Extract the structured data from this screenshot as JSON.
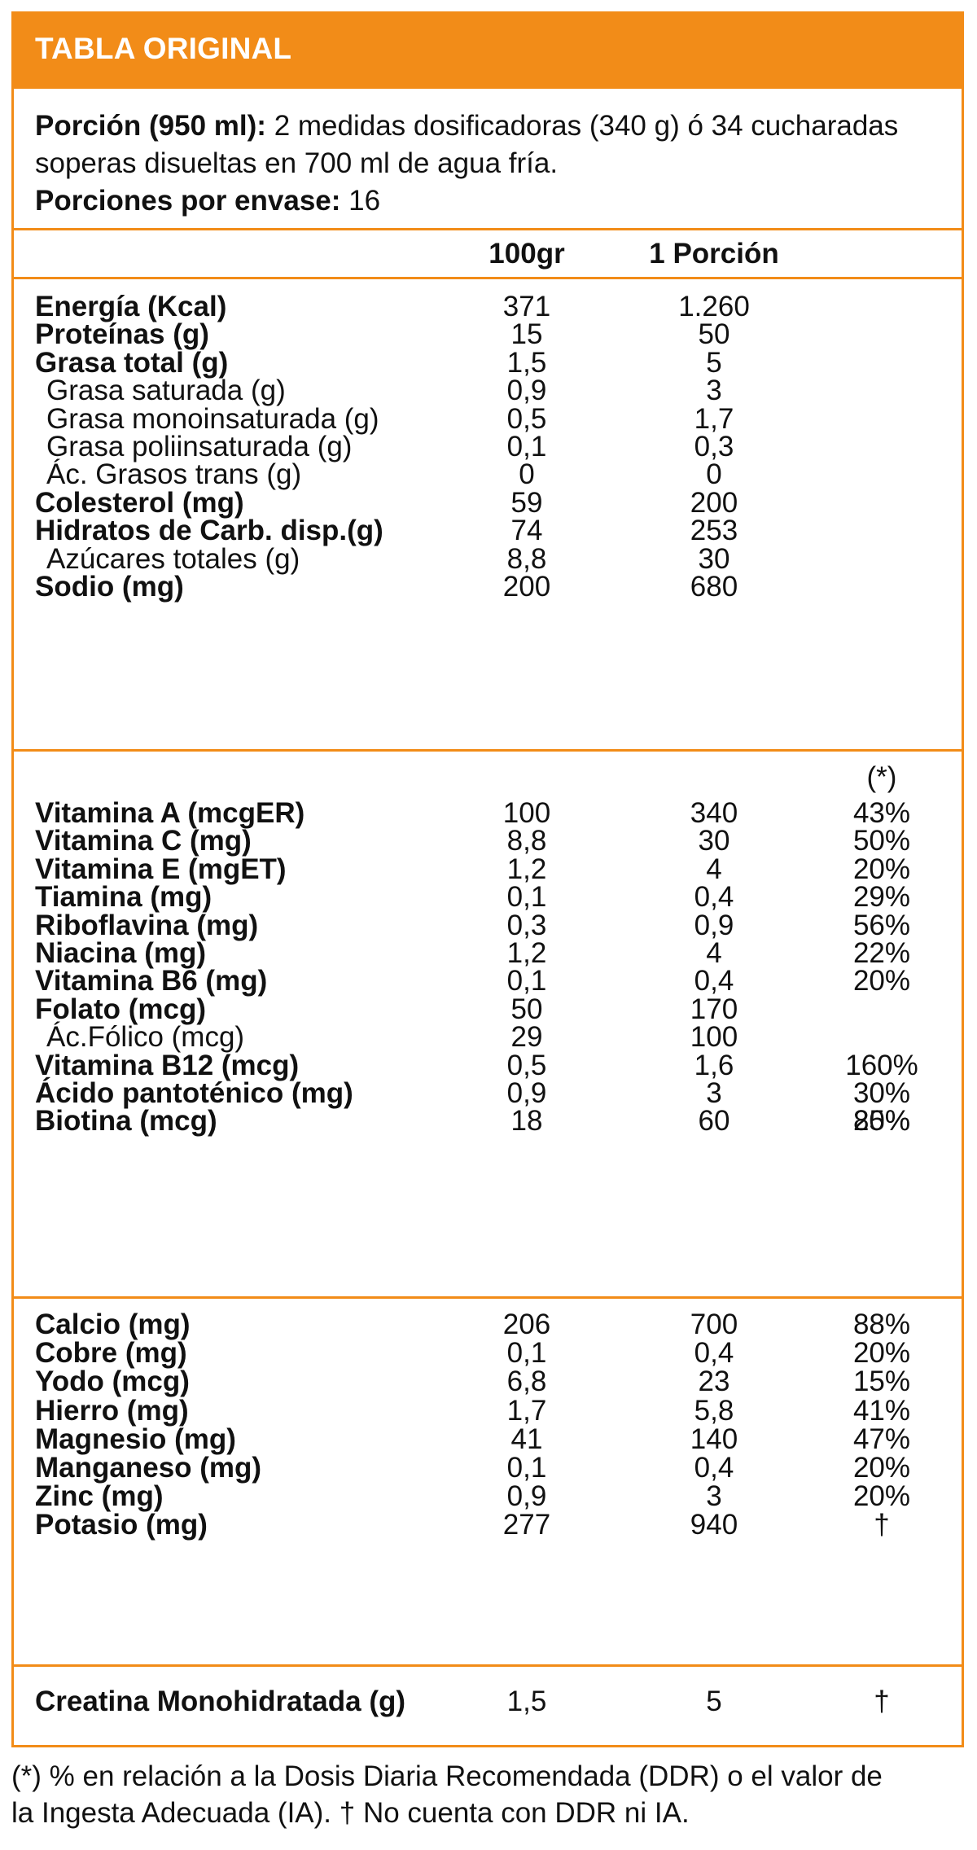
{
  "header": {
    "title": "TABLA ORIGINAL"
  },
  "serving": {
    "label": "Porción (950 ml):",
    "text1": "2 medidas dosificadoras (340 g) ó 34 cucharadas",
    "text2": "soperas disueltas en 700 ml de agua fría.",
    "per_pack_label": "Porciones por envase:",
    "per_pack_value": "16"
  },
  "columns": {
    "per100": "100gr",
    "perServing": "1 Porción",
    "percent_marker": "(*)"
  },
  "sections": [
    [
      {
        "name": "Energía (Kcal)",
        "bold": true,
        "v100": "371",
        "vpor": "1.260",
        "pct": ""
      },
      {
        "name": "Proteínas (g)",
        "bold": true,
        "v100": "15",
        "vpor": "50",
        "pct": ""
      },
      {
        "name": "Grasa total (g)",
        "bold": true,
        "v100": "1,5",
        "vpor": "5",
        "pct": ""
      },
      {
        "name": "Grasa saturada (g)",
        "bold": false,
        "v100": "0,9",
        "vpor": "3",
        "pct": ""
      },
      {
        "name": "Grasa monoinsaturada (g)",
        "bold": false,
        "v100": "0,5",
        "vpor": "1,7",
        "pct": ""
      },
      {
        "name": "Grasa poliinsaturada (g)",
        "bold": false,
        "v100": "0,1",
        "vpor": "0,3",
        "pct": ""
      },
      {
        "name": "Ác. Grasos trans (g)",
        "bold": false,
        "v100": "0",
        "vpor": "0",
        "pct": ""
      },
      {
        "name": "Colesterol (mg)",
        "bold": true,
        "v100": "59",
        "vpor": "200",
        "pct": ""
      },
      {
        "name": "Hidratos de Carb. disp.(g)",
        "bold": true,
        "v100": "74",
        "vpor": "253",
        "pct": ""
      },
      {
        "name": "Azúcares totales (g)",
        "bold": false,
        "v100": "8,8",
        "vpor": "30",
        "pct": ""
      },
      {
        "name": "Sodio (mg)",
        "bold": true,
        "v100": "200",
        "vpor": "680",
        "pct": ""
      }
    ],
    [
      {
        "name": "Vitamina A (mcgER)",
        "bold": true,
        "v100": "100",
        "vpor": "340",
        "pct": "43%"
      },
      {
        "name": "Vitamina C (mg)",
        "bold": true,
        "v100": "8,8",
        "vpor": "30",
        "pct": "50%"
      },
      {
        "name": "Vitamina E (mgET)",
        "bold": true,
        "v100": "1,2",
        "vpor": "4",
        "pct": "20%"
      },
      {
        "name": "Tiamina (mg)",
        "bold": true,
        "v100": "0,1",
        "vpor": "0,4",
        "pct": "29%"
      },
      {
        "name": "Riboflavina (mg)",
        "bold": true,
        "v100": "0,3",
        "vpor": "0,9",
        "pct": "56%"
      },
      {
        "name": "Niacina (mg)",
        "bold": true,
        "v100": "1,2",
        "vpor": "4",
        "pct": "22%"
      },
      {
        "name": "Vitamina B6 (mg)",
        "bold": true,
        "v100": "0,1",
        "vpor": "0,4",
        "pct": "20%"
      },
      {
        "name": "Folato (mcg)",
        "bold": true,
        "v100": "50",
        "vpor": "170",
        "pct": ""
      },
      {
        "name": "Ác.Fólico (mcg)",
        "bold": false,
        "v100": "29",
        "vpor": "100",
        "pct": ""
      },
      {
        "name": "Vitamina B12 (mcg)",
        "bold": true,
        "v100": "0,5",
        "vpor": "1,6",
        "pct": "160%"
      },
      {
        "name": "Ácido pantoténico (mg)",
        "bold": true,
        "v100": "0,9",
        "vpor": "3",
        "pct": "30%"
      },
      {
        "name": "Biotina (mcg)",
        "bold": true,
        "v100": "18",
        "vpor": "60",
        "pct": "20%"
      }
    ],
    [
      {
        "name": "Calcio (mg)",
        "bold": true,
        "v100": "206",
        "vpor": "700",
        "pct": "88%"
      },
      {
        "name": "Cobre (mg)",
        "bold": true,
        "v100": "0,1",
        "vpor": "0,4",
        "pct": "20%"
      },
      {
        "name": "Yodo (mcg)",
        "bold": true,
        "v100": "6,8",
        "vpor": "23",
        "pct": "15%"
      },
      {
        "name": "Hierro (mg)",
        "bold": true,
        "v100": "1,7",
        "vpor": "5,8",
        "pct": "41%"
      },
      {
        "name": "Magnesio (mg)",
        "bold": true,
        "v100": "41",
        "vpor": "140",
        "pct": "47%"
      },
      {
        "name": "Manganeso (mg)",
        "bold": true,
        "v100": "0,1",
        "vpor": "0,4",
        "pct": "20%"
      },
      {
        "name": "Zinc (mg)",
        "bold": true,
        "v100": "0,9",
        "vpor": "3",
        "pct": "20%"
      },
      {
        "name": "Potasio (mg)",
        "bold": true,
        "v100": "277",
        "vpor": "940",
        "pct": "†"
      }
    ],
    [
      {
        "name": "Creatina Monohidratada (g)",
        "bold": true,
        "v100": "1,5",
        "vpor": "5",
        "pct": "†"
      }
    ]
  ],
  "folate_pct": "85%",
  "footnote": {
    "line1": "(*) % en relación a la Dosis Diaria Recomendada (DDR) o el valor de",
    "line2": "la Ingesta Adecuada (IA). † No cuenta con DDR ni IA."
  },
  "colors": {
    "accent": "#f28c18",
    "text": "#111111"
  }
}
